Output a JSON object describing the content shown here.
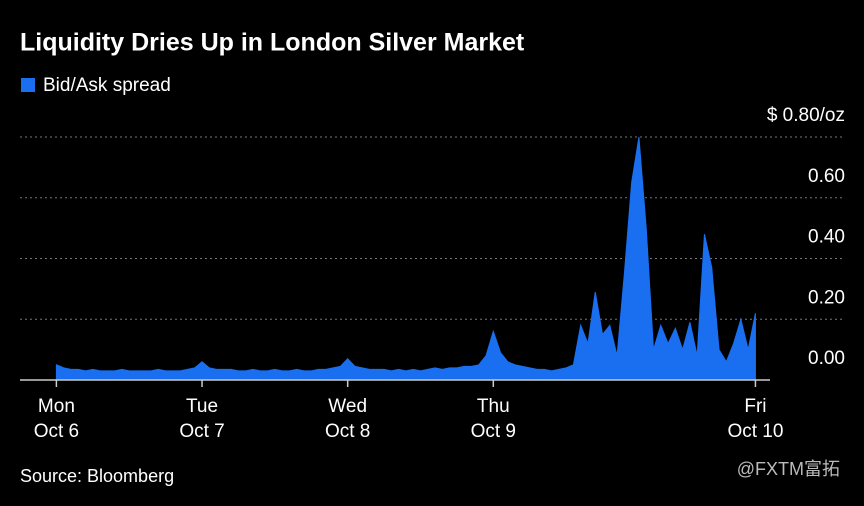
{
  "chart_data": {
    "type": "area",
    "title": "Liquidity Dries Up in London Silver Market",
    "source": "Source: Bloomberg",
    "watermark": "@FXTM富拓",
    "x": [
      0,
      1,
      2,
      3,
      4,
      5,
      6,
      7,
      8,
      9,
      10,
      11,
      12,
      13,
      14,
      15,
      16,
      17,
      18,
      19,
      20,
      21,
      22,
      23,
      24,
      25,
      26,
      27,
      28,
      29,
      30,
      31,
      32,
      33,
      34,
      35,
      36,
      37,
      38,
      39,
      40,
      41,
      42,
      43,
      44,
      45,
      46,
      47,
      48,
      49,
      50,
      51,
      52,
      53,
      54,
      55,
      56,
      57,
      58,
      59,
      60,
      61,
      62,
      63,
      64,
      65,
      66,
      67,
      68,
      69,
      70,
      71,
      72,
      73,
      74,
      75,
      76,
      77,
      78,
      79,
      80,
      81,
      82,
      83,
      84,
      85,
      86,
      87,
      88,
      89,
      90,
      91,
      92,
      93,
      94,
      95,
      96
    ],
    "series": [
      {
        "name": "Bid/Ask spread",
        "color": "#1a6ff0",
        "values": [
          0.05,
          0.04,
          0.035,
          0.035,
          0.03,
          0.035,
          0.03,
          0.03,
          0.03,
          0.035,
          0.03,
          0.03,
          0.03,
          0.03,
          0.035,
          0.03,
          0.03,
          0.03,
          0.035,
          0.04,
          0.06,
          0.04,
          0.035,
          0.035,
          0.035,
          0.03,
          0.03,
          0.035,
          0.03,
          0.03,
          0.035,
          0.03,
          0.03,
          0.035,
          0.03,
          0.03,
          0.035,
          0.035,
          0.04,
          0.045,
          0.07,
          0.045,
          0.04,
          0.035,
          0.035,
          0.035,
          0.03,
          0.035,
          0.03,
          0.035,
          0.03,
          0.035,
          0.04,
          0.035,
          0.04,
          0.04,
          0.045,
          0.045,
          0.05,
          0.08,
          0.16,
          0.09,
          0.06,
          0.05,
          0.045,
          0.04,
          0.035,
          0.035,
          0.03,
          0.035,
          0.04,
          0.05,
          0.18,
          0.12,
          0.29,
          0.15,
          0.18,
          0.08,
          0.35,
          0.65,
          0.8,
          0.5,
          0.1,
          0.18,
          0.12,
          0.17,
          0.1,
          0.19,
          0.08,
          0.48,
          0.37,
          0.1,
          0.06,
          0.12,
          0.2,
          0.1,
          0.22
        ]
      }
    ],
    "xlim": [
      -5,
      98
    ],
    "xticks": [
      {
        "value": 0,
        "label": [
          "Mon",
          "Oct 6"
        ]
      },
      {
        "value": 20,
        "label": [
          "Tue",
          "Oct 7"
        ]
      },
      {
        "value": 40,
        "label": [
          "Wed",
          "Oct 8"
        ]
      },
      {
        "value": 60,
        "label": [
          "Thu",
          "Oct 9"
        ]
      },
      {
        "value": 96,
        "label": [
          "Fri",
          "Oct 10"
        ]
      }
    ],
    "ylim": [
      0,
      0.8
    ],
    "yticks": [
      {
        "value": 0,
        "label": "0.00"
      },
      {
        "value": 0.2,
        "label": "0.20"
      },
      {
        "value": 0.4,
        "label": "0.40"
      },
      {
        "value": 0.6,
        "label": "0.60"
      },
      {
        "value": 0.8,
        "label": "$ 0.80/oz"
      }
    ],
    "grid": true
  }
}
